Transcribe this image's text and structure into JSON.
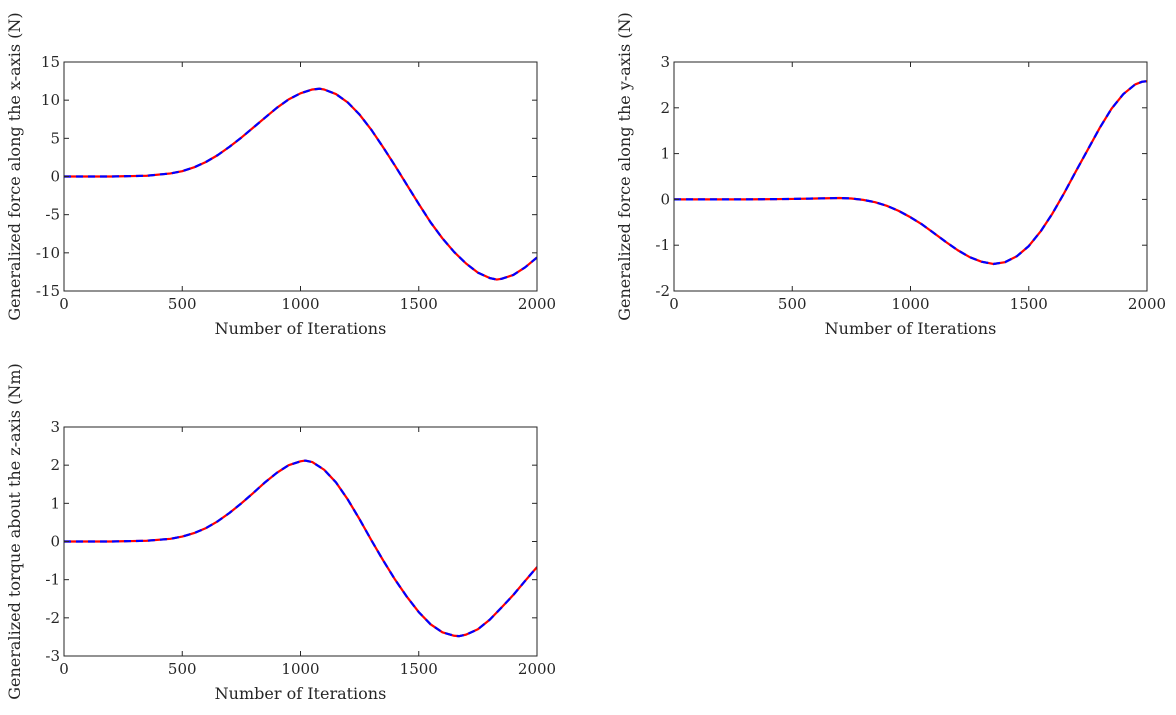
{
  "chart_data": [
    {
      "type": "line",
      "xlabel": "Number of Iterations",
      "ylabel": "Generalized force along the x-axis (N)",
      "xlim": [
        0,
        2000
      ],
      "ylim": [
        -15,
        15
      ],
      "xticks": [
        0,
        500,
        1000,
        1500,
        2000
      ],
      "yticks": [
        -15,
        -10,
        -5,
        0,
        5,
        10,
        15
      ],
      "xtick_labels": [
        "0",
        "500",
        "1000",
        "1500",
        "2000"
      ],
      "ytick_labels": [
        "-15",
        "-10",
        "-5",
        "0",
        "5",
        "10",
        "15"
      ],
      "grid": false,
      "series": [
        {
          "style": "solid",
          "color": "#ff0000",
          "x": [
            0,
            200,
            350,
            450,
            500,
            550,
            600,
            650,
            700,
            750,
            800,
            850,
            900,
            950,
            1000,
            1050,
            1080,
            1100,
            1150,
            1200,
            1250,
            1300,
            1350,
            1400,
            1450,
            1500,
            1550,
            1600,
            1650,
            1700,
            1750,
            1800,
            1830,
            1850,
            1900,
            1950,
            2000
          ],
          "y": [
            0,
            0,
            0.1,
            0.4,
            0.7,
            1.2,
            1.9,
            2.8,
            3.9,
            5.1,
            6.4,
            7.7,
            9.0,
            10.1,
            10.9,
            11.4,
            11.5,
            11.4,
            10.8,
            9.7,
            8.1,
            6.1,
            3.8,
            1.4,
            -1.1,
            -3.6,
            -6.0,
            -8.1,
            -9.9,
            -11.4,
            -12.6,
            -13.3,
            -13.5,
            -13.4,
            -12.9,
            -11.9,
            -10.6
          ]
        },
        {
          "style": "dashed",
          "color": "#0000ff",
          "x": [
            0,
            200,
            350,
            450,
            500,
            550,
            600,
            650,
            700,
            750,
            800,
            850,
            900,
            950,
            1000,
            1050,
            1080,
            1100,
            1150,
            1200,
            1250,
            1300,
            1350,
            1400,
            1450,
            1500,
            1550,
            1600,
            1650,
            1700,
            1750,
            1800,
            1830,
            1850,
            1900,
            1950,
            2000
          ],
          "y": [
            0,
            0,
            0.1,
            0.4,
            0.7,
            1.2,
            1.9,
            2.8,
            3.9,
            5.1,
            6.4,
            7.7,
            9.0,
            10.1,
            10.9,
            11.4,
            11.5,
            11.4,
            10.8,
            9.7,
            8.1,
            6.1,
            3.8,
            1.4,
            -1.1,
            -3.6,
            -6.0,
            -8.1,
            -9.9,
            -11.4,
            -12.6,
            -13.3,
            -13.5,
            -13.4,
            -12.9,
            -11.9,
            -10.6
          ]
        }
      ]
    },
    {
      "type": "line",
      "xlabel": "Number of Iterations",
      "ylabel": "Generalized force along the y-axis (N)",
      "xlim": [
        0,
        2000
      ],
      "ylim": [
        -2,
        3
      ],
      "xticks": [
        0,
        500,
        1000,
        1500,
        2000
      ],
      "yticks": [
        -2,
        -1,
        0,
        1,
        2,
        3
      ],
      "xtick_labels": [
        "0",
        "500",
        "1000",
        "1500",
        "2000"
      ],
      "ytick_labels": [
        "-2",
        "-1",
        "0",
        "1",
        "2",
        "3"
      ],
      "grid": false,
      "series": [
        {
          "style": "solid",
          "color": "#ff0000",
          "x": [
            0,
            300,
            500,
            600,
            700,
            750,
            800,
            850,
            900,
            950,
            1000,
            1050,
            1100,
            1150,
            1200,
            1250,
            1300,
            1350,
            1400,
            1450,
            1500,
            1550,
            1600,
            1650,
            1700,
            1750,
            1800,
            1850,
            1900,
            1950,
            1980,
            2000
          ],
          "y": [
            0,
            0,
            0.01,
            0.02,
            0.03,
            0.02,
            -0.01,
            -0.06,
            -0.14,
            -0.25,
            -0.39,
            -0.55,
            -0.74,
            -0.93,
            -1.11,
            -1.26,
            -1.36,
            -1.41,
            -1.37,
            -1.24,
            -1.02,
            -0.7,
            -0.31,
            0.14,
            0.62,
            1.09,
            1.56,
            1.98,
            2.3,
            2.51,
            2.57,
            2.58
          ]
        },
        {
          "style": "dashed",
          "color": "#0000ff",
          "x": [
            0,
            300,
            500,
            600,
            700,
            750,
            800,
            850,
            900,
            950,
            1000,
            1050,
            1100,
            1150,
            1200,
            1250,
            1300,
            1350,
            1400,
            1450,
            1500,
            1550,
            1600,
            1650,
            1700,
            1750,
            1800,
            1850,
            1900,
            1950,
            1980,
            2000
          ],
          "y": [
            0,
            0,
            0.01,
            0.02,
            0.03,
            0.02,
            -0.01,
            -0.06,
            -0.14,
            -0.25,
            -0.39,
            -0.55,
            -0.74,
            -0.93,
            -1.11,
            -1.26,
            -1.36,
            -1.41,
            -1.37,
            -1.24,
            -1.02,
            -0.7,
            -0.31,
            0.14,
            0.62,
            1.09,
            1.56,
            1.98,
            2.3,
            2.51,
            2.57,
            2.58
          ]
        }
      ]
    },
    {
      "type": "line",
      "xlabel": "Number of Iterations",
      "ylabel": "Generalized torque about the z-axis (Nm)",
      "xlim": [
        0,
        2000
      ],
      "ylim": [
        -3,
        3
      ],
      "xticks": [
        0,
        500,
        1000,
        1500,
        2000
      ],
      "yticks": [
        -3,
        -2,
        -1,
        0,
        1,
        2,
        3
      ],
      "xtick_labels": [
        "0",
        "500",
        "1000",
        "1500",
        "2000"
      ],
      "ytick_labels": [
        "-3",
        "-2",
        "-1",
        "0",
        "1",
        "2",
        "3"
      ],
      "grid": false,
      "series": [
        {
          "style": "solid",
          "color": "#ff0000",
          "x": [
            0,
            200,
            350,
            450,
            500,
            550,
            600,
            650,
            700,
            750,
            800,
            850,
            900,
            950,
            1000,
            1020,
            1050,
            1100,
            1150,
            1200,
            1250,
            1300,
            1350,
            1400,
            1450,
            1500,
            1550,
            1600,
            1650,
            1670,
            1700,
            1750,
            1800,
            1850,
            1900,
            1950,
            2000
          ],
          "y": [
            0,
            0,
            0.02,
            0.07,
            0.13,
            0.22,
            0.35,
            0.53,
            0.75,
            1.0,
            1.27,
            1.55,
            1.8,
            2.0,
            2.1,
            2.12,
            2.08,
            1.88,
            1.55,
            1.1,
            0.58,
            0.03,
            -0.5,
            -1.0,
            -1.45,
            -1.85,
            -2.17,
            -2.38,
            -2.47,
            -2.48,
            -2.44,
            -2.3,
            -2.05,
            -1.73,
            -1.4,
            -1.03,
            -0.67
          ]
        },
        {
          "style": "dashed",
          "color": "#0000ff",
          "x": [
            0,
            200,
            350,
            450,
            500,
            550,
            600,
            650,
            700,
            750,
            800,
            850,
            900,
            950,
            1000,
            1020,
            1050,
            1100,
            1150,
            1200,
            1250,
            1300,
            1350,
            1400,
            1450,
            1500,
            1550,
            1600,
            1650,
            1670,
            1700,
            1750,
            1800,
            1850,
            1900,
            1950,
            2000
          ],
          "y": [
            0,
            0,
            0.02,
            0.07,
            0.13,
            0.22,
            0.35,
            0.53,
            0.75,
            1.0,
            1.27,
            1.55,
            1.8,
            2.0,
            2.1,
            2.12,
            2.08,
            1.88,
            1.55,
            1.1,
            0.58,
            0.03,
            -0.5,
            -1.0,
            -1.45,
            -1.85,
            -2.17,
            -2.38,
            -2.47,
            -2.48,
            -2.44,
            -2.3,
            -2.05,
            -1.73,
            -1.4,
            -1.03,
            -0.67
          ]
        }
      ]
    }
  ]
}
